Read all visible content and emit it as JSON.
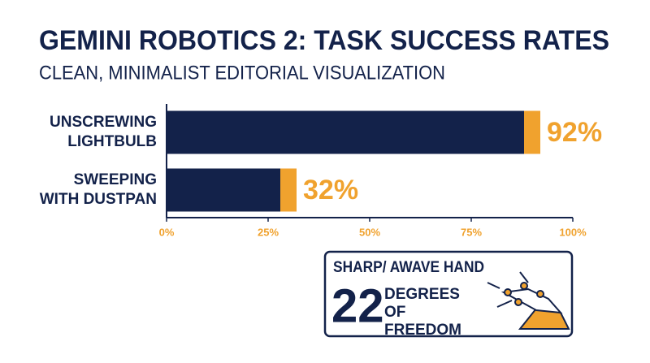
{
  "chart_data": {
    "type": "hbar",
    "title": "GEMINI ROBOTICS 2: TASK SUCCESS RATES",
    "subtitle": "CLEAN, MINIMALIST EDITORIAL VISUALIZATION",
    "categories": [
      "UNSCREWING LIGHTBULB",
      "SWEEPING WITH DUSTPAN"
    ],
    "values": [
      92,
      32
    ],
    "value_labels": [
      "92%",
      "32%"
    ],
    "color": "#13224a",
    "accent_color": "#f0a22e",
    "xlim": [
      0,
      100
    ],
    "xticks": [
      {
        "value": 0,
        "label": "0%"
      },
      {
        "value": 25,
        "label": "25%"
      },
      {
        "value": 50,
        "label": "50%"
      },
      {
        "value": 75,
        "label": "75%"
      },
      {
        "value": 100,
        "label": "100%"
      }
    ],
    "annotation": {
      "heading": "SHARP/ AWAVE HAND",
      "number": 22,
      "text": "DEGREES OF FREEDOM"
    }
  }
}
